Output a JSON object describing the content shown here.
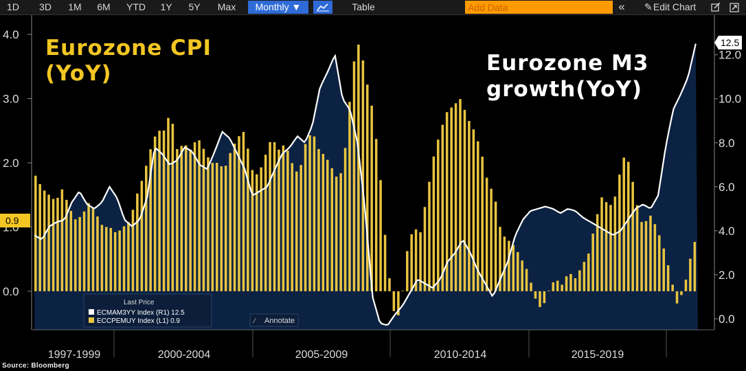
{
  "toolbar": {
    "ranges": [
      "1D",
      "3D",
      "1M",
      "6M",
      "YTD",
      "1Y",
      "5Y",
      "Max"
    ],
    "frequency": "Monthly ▼",
    "chart_icon": "line-chart-icon",
    "table_label": "Table",
    "add_data_placeholder": "Add Data",
    "collapse": "«",
    "edit_chart": "Edit Chart",
    "edit_icon": "pencil-icon",
    "settings_icon": "edit-square-icon",
    "export_icon": "export-icon"
  },
  "colors": {
    "background": "#000000",
    "navy_fill": "#0c2243",
    "cpi_bar": "#e8c440",
    "m3_line": "#ffffff",
    "title_cpi": "#f3c623",
    "title_m3": "#ffffff"
  },
  "annotations": {
    "cpi_title_line1": "Eurozone CPI",
    "cpi_title_line2": "(YoY)",
    "m3_title_line1": "Eurozone M3",
    "m3_title_line2": "growth(YoY)",
    "annotate_label": "Annotate"
  },
  "legend": {
    "header": "Last Price",
    "items": [
      {
        "label": "ECMAM3YY Index  (R1) 12.5",
        "color": "#ffffff"
      },
      {
        "label": "ECCPEMUY Index  (L1) 0.9",
        "color": "#e8c440"
      }
    ]
  },
  "last_value_tags": {
    "left": "0.9",
    "right": "12.5"
  },
  "source": "Source: Bloomberg",
  "chart_data": {
    "type": "bar",
    "x_period_labels": [
      "1997-1999",
      "2000-2004",
      "2005-2009",
      "2010-2014",
      "2015-2019"
    ],
    "left_axis": {
      "series": "ECCPEMUY Index",
      "ticks": [
        "4.0",
        "3.0",
        "2.0",
        "1.0",
        "0.0"
      ],
      "range": [
        -0.6,
        4.3
      ]
    },
    "right_axis": {
      "series": "ECMAM3YY Index",
      "ticks": [
        "12.0",
        "10.0",
        "8.0",
        "6.0",
        "4.0",
        "2.0",
        "0.0"
      ],
      "range": [
        -0.5,
        13.8
      ]
    },
    "series": [
      {
        "name": "ECCPEMUY Index",
        "kind": "bar",
        "axis": "left",
        "period": "1996-01 to 2020-12 (monthly, approximated quarterly)",
        "values": [
          1.8,
          1.6,
          1.5,
          1.4,
          1.6,
          1.3,
          1.1,
          1.2,
          1.4,
          1.2,
          1.0,
          1.0,
          0.9,
          1.0,
          1.1,
          1.5,
          1.8,
          2.2,
          2.5,
          2.5,
          2.8,
          2.2,
          2.3,
          2.2,
          2.4,
          2.2,
          2.0,
          2.0,
          1.9,
          2.2,
          2.4,
          2.5,
          1.9,
          1.8,
          2.1,
          2.4,
          2.2,
          2.3,
          2.0,
          1.8,
          2.3,
          2.5,
          2.2,
          2.1,
          1.9,
          1.7,
          2.3,
          3.5,
          3.9,
          3.3,
          2.8,
          1.9,
          0.6,
          -0.3,
          -0.4,
          0.6,
          1.0,
          0.9,
          1.5,
          2.1,
          2.5,
          2.8,
          2.9,
          3.0,
          2.7,
          2.5,
          2.2,
          1.7,
          1.5,
          0.9,
          0.8,
          0.7,
          0.5,
          0.3,
          -0.1,
          -0.3,
          0.0,
          0.2,
          0.1,
          0.3,
          0.2,
          0.4,
          0.6,
          1.1,
          1.5,
          1.3,
          1.5,
          2.1,
          2.0,
          1.4,
          1.0,
          1.2,
          1.0,
          0.7,
          0.3,
          -0.2,
          0.0,
          0.5,
          0.9
        ]
      },
      {
        "name": "ECMAM3YY Index",
        "kind": "line",
        "axis": "right",
        "values": [
          3.8,
          3.6,
          4.2,
          4.4,
          4.5,
          5.3,
          5.8,
          5.2,
          5.0,
          5.3,
          6.0,
          5.5,
          4.5,
          4.2,
          4.5,
          5.5,
          7.8,
          7.5,
          7.0,
          7.2,
          7.8,
          7.6,
          7.0,
          6.8,
          7.6,
          8.5,
          8.2,
          7.5,
          6.8,
          5.6,
          5.8,
          6.0,
          6.8,
          7.5,
          7.8,
          8.3,
          8.0,
          8.8,
          10.5,
          11.2,
          12.0,
          10.0,
          9.5,
          8.0,
          5.0,
          1.0,
          -0.2,
          -0.3,
          0.2,
          0.6,
          1.2,
          1.8,
          1.6,
          1.4,
          1.8,
          2.6,
          3.0,
          3.6,
          3.0,
          2.2,
          1.6,
          1.0,
          1.8,
          2.6,
          3.8,
          4.5,
          4.9,
          5.0,
          5.1,
          5.0,
          4.8,
          5.0,
          4.9,
          4.6,
          4.4,
          4.2,
          4.0,
          3.8,
          4.0,
          4.5,
          5.0,
          5.2,
          5.0,
          5.6,
          7.8,
          9.5,
          10.2,
          11.0,
          12.5
        ]
      }
    ],
    "grid": false,
    "legend_placement": "bottom-left"
  }
}
